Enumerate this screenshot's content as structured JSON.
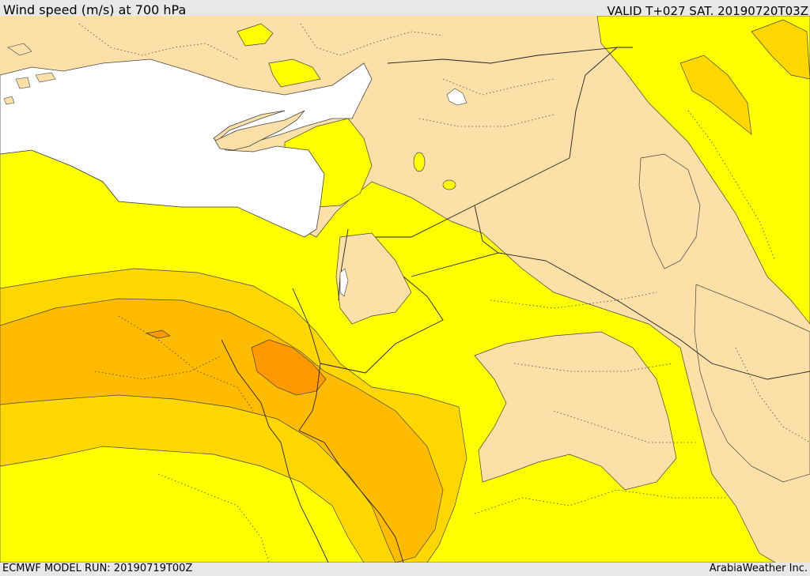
{
  "header": {
    "title": "Wind speed (m/s) at 700 hPa",
    "valid": "VALID T+027 SAT. 20190720T03Z"
  },
  "footer": {
    "model_run": "ECMWF MODEL RUN: 20190719T00Z",
    "credit": "ArabiaWeather Inc."
  },
  "colors": {
    "land_light": "#fde0a8",
    "band_yellow": "#ffff00",
    "band_gold": "#ffd700",
    "band_amber": "#ffbb00",
    "band_orange": "#ff9900",
    "sea": "#ffffff"
  }
}
